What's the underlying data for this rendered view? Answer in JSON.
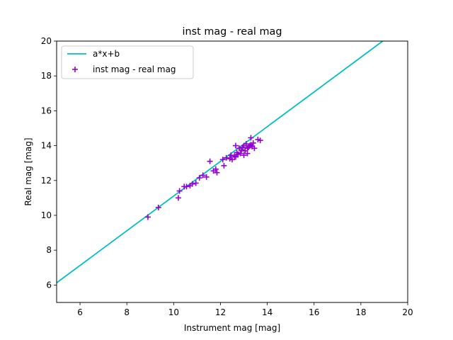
{
  "chart_data": {
    "type": "scatter",
    "title": "inst mag - real mag",
    "xlabel": "Instrument mag [mag]",
    "ylabel": "Real mag [mag]",
    "xlim": [
      5,
      20
    ],
    "ylim": [
      5,
      20
    ],
    "xticks": [
      6,
      8,
      10,
      12,
      14,
      16,
      18,
      20
    ],
    "yticks": [
      6,
      8,
      10,
      12,
      14,
      16,
      18,
      20
    ],
    "grid": false,
    "legend_position": "upper-left",
    "fit_line": {
      "name": "a*x+b",
      "color": "#00bfbf",
      "a": 0.9956,
      "b": 1.15
    },
    "series": [
      {
        "name": "inst mag - real mag",
        "color": "#9400d3",
        "marker": "plus",
        "points": [
          [
            8.9,
            9.9
          ],
          [
            9.35,
            10.45
          ],
          [
            10.2,
            11.0
          ],
          [
            10.25,
            11.4
          ],
          [
            10.45,
            11.65
          ],
          [
            10.55,
            11.65
          ],
          [
            10.7,
            11.7
          ],
          [
            10.8,
            11.8
          ],
          [
            10.95,
            11.85
          ],
          [
            11.1,
            12.15
          ],
          [
            11.25,
            12.3
          ],
          [
            11.4,
            12.2
          ],
          [
            11.55,
            13.1
          ],
          [
            11.7,
            12.55
          ],
          [
            11.8,
            12.65
          ],
          [
            11.85,
            12.45
          ],
          [
            12.1,
            13.2
          ],
          [
            12.15,
            12.85
          ],
          [
            12.25,
            13.3
          ],
          [
            12.4,
            13.25
          ],
          [
            12.45,
            13.45
          ],
          [
            12.5,
            13.2
          ],
          [
            12.6,
            13.4
          ],
          [
            12.65,
            13.35
          ],
          [
            12.65,
            14.0
          ],
          [
            12.7,
            13.6
          ],
          [
            12.75,
            13.5
          ],
          [
            12.8,
            13.85
          ],
          [
            12.85,
            13.55
          ],
          [
            12.9,
            13.75
          ],
          [
            12.95,
            13.9
          ],
          [
            13.0,
            14.0
          ],
          [
            13.0,
            13.45
          ],
          [
            13.05,
            13.7
          ],
          [
            13.1,
            14.1
          ],
          [
            13.15,
            13.85
          ],
          [
            13.15,
            13.55
          ],
          [
            13.2,
            13.9
          ],
          [
            13.25,
            14.0
          ],
          [
            13.3,
            14.45
          ],
          [
            13.3,
            14.05
          ],
          [
            13.35,
            13.95
          ],
          [
            13.4,
            14.15
          ],
          [
            13.45,
            13.85
          ],
          [
            13.6,
            14.35
          ],
          [
            13.7,
            14.3
          ]
        ]
      }
    ]
  }
}
